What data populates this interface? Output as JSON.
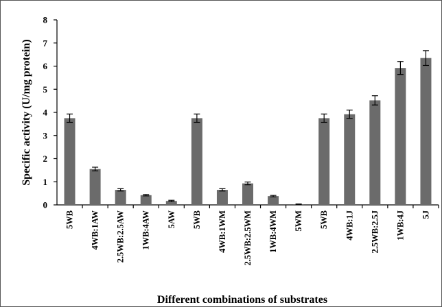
{
  "chart_data": {
    "type": "bar",
    "title": "",
    "xlabel": "Different combinations of substrates",
    "ylabel": "Specific activity (U/mg protein)",
    "ylim": [
      0,
      8
    ],
    "yticks": [
      0,
      1,
      2,
      3,
      4,
      5,
      6,
      7,
      8
    ],
    "grid": false,
    "legend": "none",
    "bar_color": "#6b6b6b",
    "categories": [
      "5WB",
      "4WB:1AW",
      "2.5WB:2.5AW",
      "1WB:4AW",
      "5AW",
      "5WB",
      "4WB:1WM",
      "2.5WB:2.5WM",
      "1WB:4WM",
      "5WM",
      "5WB",
      "4WB:1J",
      "2.5WB:2.5J",
      "1WB:4J",
      "5J"
    ],
    "values": [
      3.75,
      1.55,
      0.65,
      0.42,
      0.17,
      3.75,
      0.65,
      0.93,
      0.38,
      0.03,
      3.75,
      3.92,
      4.52,
      5.92,
      6.35
    ],
    "errors": [
      0.18,
      0.08,
      0.05,
      0.03,
      0.03,
      0.18,
      0.05,
      0.06,
      0.03,
      0.01,
      0.18,
      0.18,
      0.2,
      0.28,
      0.32
    ]
  }
}
